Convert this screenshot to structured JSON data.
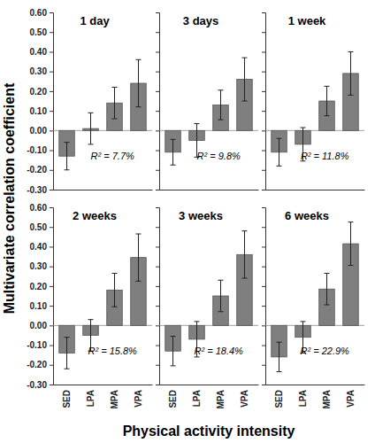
{
  "figure": {
    "x_label": "Physical activity intensity",
    "y_label": "Multivariate correlation coefficient"
  },
  "chart_data": [
    {
      "type": "bar",
      "title": "1 day",
      "annotation": "R² = 7.7%",
      "categories": [
        "SED",
        "LPA",
        "MPA",
        "VPA"
      ],
      "values": [
        -0.13,
        0.01,
        0.14,
        0.24
      ],
      "errors": [
        0.07,
        0.08,
        0.08,
        0.12
      ],
      "color": "#7f7f7f",
      "ylim": [
        -0.3,
        0.6
      ],
      "yticks": [
        {
          "value": -0.3,
          "label": "-0.30"
        },
        {
          "value": -0.2,
          "label": "-0.20"
        },
        {
          "value": -0.1,
          "label": "-0.10"
        },
        {
          "value": 0,
          "label": "0.00"
        },
        {
          "value": 0.1,
          "label": "0.10"
        },
        {
          "value": 0.2,
          "label": "0.20"
        },
        {
          "value": 0.3,
          "label": "0.30"
        },
        {
          "value": 0.4,
          "label": "0.40"
        },
        {
          "value": 0.5,
          "label": "0.50"
        },
        {
          "value": 0.6,
          "label": "0.60"
        }
      ],
      "tick_labels": "y"
    },
    {
      "type": "bar",
      "title": "3 days",
      "annotation": "R² = 9.8%",
      "categories": [
        "SED",
        "LPA",
        "MPA",
        "VPA"
      ],
      "values": [
        -0.11,
        -0.05,
        0.13,
        0.26
      ],
      "errors": [
        0.065,
        0.085,
        0.075,
        0.11
      ],
      "color": "#7f7f7f",
      "ylim": [
        -0.3,
        0.6
      ],
      "yticks": [
        {
          "value": -0.3,
          "label": "-0.30"
        },
        {
          "value": -0.2,
          "label": "-0.20"
        },
        {
          "value": -0.1,
          "label": "-0.10"
        },
        {
          "value": 0,
          "label": "0.00"
        },
        {
          "value": 0.1,
          "label": "0.10"
        },
        {
          "value": 0.2,
          "label": "0.20"
        },
        {
          "value": 0.3,
          "label": "0.30"
        },
        {
          "value": 0.4,
          "label": "0.40"
        },
        {
          "value": 0.5,
          "label": "0.50"
        },
        {
          "value": 0.6,
          "label": "0.60"
        }
      ],
      "tick_labels": false
    },
    {
      "type": "bar",
      "title": "1 week",
      "annotation": "R² = 11.8%",
      "categories": [
        "SED",
        "LPA",
        "MPA",
        "VPA"
      ],
      "values": [
        -0.11,
        -0.07,
        0.15,
        0.29
      ],
      "errors": [
        0.07,
        0.085,
        0.075,
        0.11
      ],
      "color": "#7f7f7f",
      "ylim": [
        -0.3,
        0.6
      ],
      "yticks": [
        {
          "value": -0.3,
          "label": "-0.30"
        },
        {
          "value": -0.2,
          "label": "-0.20"
        },
        {
          "value": -0.1,
          "label": "-0.10"
        },
        {
          "value": 0,
          "label": "0.00"
        },
        {
          "value": 0.1,
          "label": "0.10"
        },
        {
          "value": 0.2,
          "label": "0.20"
        },
        {
          "value": 0.3,
          "label": "0.30"
        },
        {
          "value": 0.4,
          "label": "0.40"
        },
        {
          "value": 0.5,
          "label": "0.50"
        },
        {
          "value": 0.6,
          "label": "0.60"
        }
      ],
      "tick_labels": false
    },
    {
      "type": "bar",
      "title": "2 weeks",
      "annotation": "R² = 15.8%",
      "categories": [
        "SED",
        "LPA",
        "MPA",
        "VPA"
      ],
      "values": [
        -0.14,
        -0.05,
        0.18,
        0.345
      ],
      "errors": [
        0.08,
        0.08,
        0.085,
        0.12
      ],
      "color": "#7f7f7f",
      "ylim": [
        -0.3,
        0.6
      ],
      "yticks": [
        {
          "value": -0.3,
          "label": "-0.30"
        },
        {
          "value": -0.2,
          "label": "-0.20"
        },
        {
          "value": -0.1,
          "label": "-0.10"
        },
        {
          "value": 0,
          "label": "0.00"
        },
        {
          "value": 0.1,
          "label": "0.10"
        },
        {
          "value": 0.2,
          "label": "0.20"
        },
        {
          "value": 0.3,
          "label": "0.30"
        },
        {
          "value": 0.4,
          "label": "0.40"
        },
        {
          "value": 0.5,
          "label": "0.50"
        },
        {
          "value": 0.6,
          "label": "0.60"
        }
      ]
    },
    {
      "type": "bar",
      "title": "3 weeks",
      "annotation": "R² = 18.4%",
      "categories": [
        "SED",
        "LPA",
        "MPA",
        "VPA"
      ],
      "values": [
        -0.13,
        -0.07,
        0.15,
        0.36
      ],
      "errors": [
        0.075,
        0.09,
        0.08,
        0.12
      ],
      "color": "#7f7f7f",
      "ylim": [
        -0.3,
        0.6
      ],
      "yticks": [
        {
          "value": -0.3,
          "label": "-0.30"
        },
        {
          "value": -0.2,
          "label": "-0.20"
        },
        {
          "value": -0.1,
          "label": "-0.10"
        },
        {
          "value": 0,
          "label": "0.00"
        },
        {
          "value": 0.1,
          "label": "0.10"
        },
        {
          "value": 0.2,
          "label": "0.20"
        },
        {
          "value": 0.3,
          "label": "0.30"
        },
        {
          "value": 0.4,
          "label": "0.40"
        },
        {
          "value": 0.5,
          "label": "0.50"
        },
        {
          "value": 0.6,
          "label": "0.60"
        }
      ],
      "tick_labels": "x"
    },
    {
      "type": "bar",
      "title": "6 weeks",
      "annotation": "R² = 22.9%",
      "categories": [
        "SED",
        "LPA",
        "MPA",
        "VPA"
      ],
      "values": [
        -0.16,
        -0.06,
        0.185,
        0.415
      ],
      "errors": [
        0.075,
        0.08,
        0.08,
        0.11
      ],
      "color": "#7f7f7f",
      "ylim": [
        -0.3,
        0.6
      ],
      "yticks": [
        {
          "value": -0.3,
          "label": "-0.30"
        },
        {
          "value": -0.2,
          "label": "-0.20"
        },
        {
          "value": -0.1,
          "label": "-0.10"
        },
        {
          "value": 0,
          "label": "0.00"
        },
        {
          "value": 0.1,
          "label": "0.10"
        },
        {
          "value": 0.2,
          "label": "0.20"
        },
        {
          "value": 0.3,
          "label": "0.30"
        },
        {
          "value": 0.4,
          "label": "0.40"
        },
        {
          "value": 0.5,
          "label": "0.50"
        },
        {
          "value": 0.6,
          "label": "0.60"
        }
      ],
      "tick_labels": "x"
    }
  ]
}
